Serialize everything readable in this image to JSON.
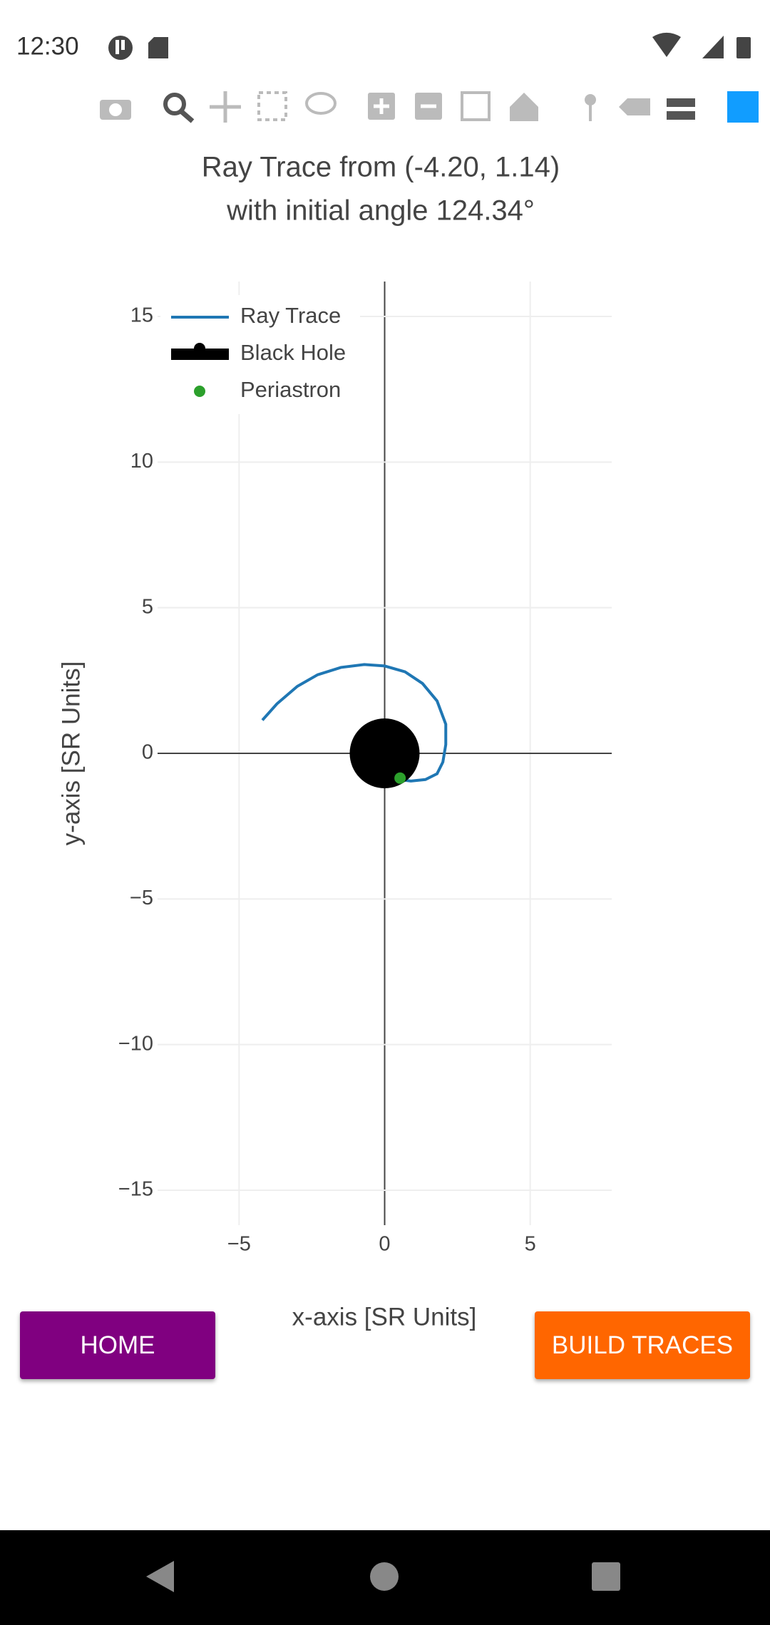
{
  "status_bar": {
    "time": "12:30"
  },
  "chart_data": {
    "type": "scatter",
    "title": [
      "Ray Trace from (-4.20, 1.14)",
      "with initial angle 124.34°"
    ],
    "x_label": "x-axis [SR Units]",
    "y_label": "y-axis [SR Units]",
    "xlim": [
      -7.8,
      7.8
    ],
    "ylim": [
      -16.2,
      16.2
    ],
    "xticks": [
      {
        "value": -5,
        "label": "−5"
      },
      0,
      5
    ],
    "yticks": [
      {
        "value": -15,
        "label": "−15"
      },
      {
        "value": -10,
        "label": "−10"
      },
      {
        "value": -5,
        "label": "−5"
      },
      0,
      5,
      10,
      15
    ],
    "grid": true,
    "zeroline": true,
    "legend": "top-left",
    "series": [
      {
        "name": "Ray Trace",
        "color": "#1f77b4",
        "mode": "lines",
        "x": [
          -4.2,
          -3.7,
          -3.0,
          -2.3,
          -1.5,
          -0.7,
          0,
          0.7,
          1.3,
          1.8,
          2.1,
          2.1,
          2.0,
          1.8,
          1.4,
          0.9,
          0.5
        ],
        "y": [
          1.14,
          1.7,
          2.3,
          2.7,
          2.95,
          3.05,
          3.0,
          2.8,
          2.4,
          1.8,
          1.0,
          0.3,
          -0.3,
          -0.7,
          -0.9,
          -0.95,
          -0.9
        ]
      },
      {
        "name": "Black Hole",
        "color": "#000000",
        "mode": "disk",
        "x": [
          0
        ],
        "y": [
          0
        ],
        "radius": 1.2
      },
      {
        "name": "Periastron",
        "color": "#2ca02c",
        "mode": "markers",
        "x": [
          0.53
        ],
        "y": [
          -0.85
        ]
      }
    ]
  },
  "buttons": {
    "home": "HOME",
    "build": "BUILD TRACES"
  }
}
